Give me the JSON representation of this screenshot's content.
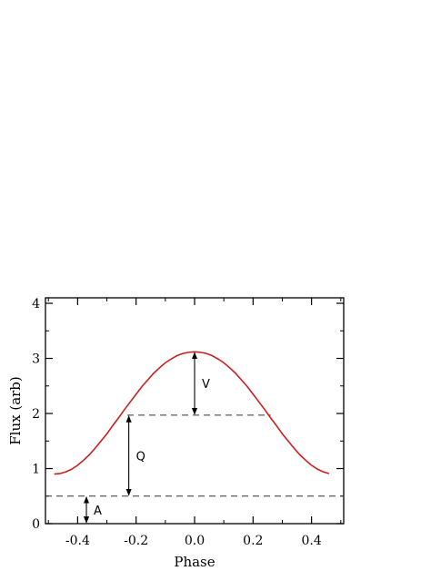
{
  "chart_data": {
    "type": "line",
    "title": "",
    "xlabel": "Phase",
    "ylabel": "Flux (arb)",
    "xlim": [
      -0.51,
      0.51
    ],
    "ylim": [
      0,
      4.1
    ],
    "xticks": [
      -0.4,
      -0.2,
      0.0,
      0.2,
      0.4
    ],
    "xtick_labels": [
      "-0.4",
      "-0.2",
      "0.0",
      "0.2",
      "0.4"
    ],
    "yticks": [
      0,
      1,
      2,
      3,
      4
    ],
    "ytick_labels": [
      "0",
      "1",
      "2",
      "3",
      "4"
    ],
    "grid": false,
    "colors": {
      "curve": "#cc1f1f",
      "axes": "#000000",
      "dashed": "#333333"
    },
    "series": [
      {
        "x": [
          -0.48,
          -0.46,
          -0.44,
          -0.42,
          -0.4,
          -0.38,
          -0.36,
          -0.34,
          -0.32,
          -0.3,
          -0.28,
          -0.26,
          -0.24,
          -0.22,
          -0.2,
          -0.18,
          -0.16,
          -0.14,
          -0.12,
          -0.1,
          -0.08,
          -0.06,
          -0.04,
          -0.02,
          0.0,
          0.02,
          0.04,
          0.06,
          0.08,
          0.1,
          0.12,
          0.14,
          0.16,
          0.18,
          0.2,
          0.22,
          0.24,
          0.26,
          0.28,
          0.3,
          0.32,
          0.34,
          0.36,
          0.38,
          0.4,
          0.42,
          0.44,
          0.46
        ],
        "y": [
          0.9,
          0.91,
          0.94,
          0.99,
          1.06,
          1.15,
          1.25,
          1.37,
          1.5,
          1.63,
          1.78,
          1.92,
          2.07,
          2.21,
          2.35,
          2.49,
          2.61,
          2.73,
          2.83,
          2.92,
          2.99,
          3.05,
          3.09,
          3.11,
          3.12,
          3.11,
          3.09,
          3.05,
          2.99,
          2.92,
          2.83,
          2.73,
          2.61,
          2.49,
          2.35,
          2.21,
          2.07,
          1.92,
          1.78,
          1.63,
          1.5,
          1.37,
          1.25,
          1.15,
          1.06,
          0.99,
          0.94,
          0.91
        ]
      }
    ],
    "reference_lines": [
      {
        "y": 1.97,
        "x_from": -0.23,
        "x_to": 0.26
      },
      {
        "y": 0.5,
        "x_from": -0.51,
        "x_to": 0.51
      }
    ],
    "annotations": [
      {
        "label": "V",
        "x": 0.0,
        "y_from": 1.97,
        "y_to": 3.12
      },
      {
        "label": "Q",
        "x": -0.225,
        "y_from": 0.5,
        "y_to": 1.97
      },
      {
        "label": "A",
        "x": -0.37,
        "y_from": 0.0,
        "y_to": 0.5
      }
    ]
  }
}
